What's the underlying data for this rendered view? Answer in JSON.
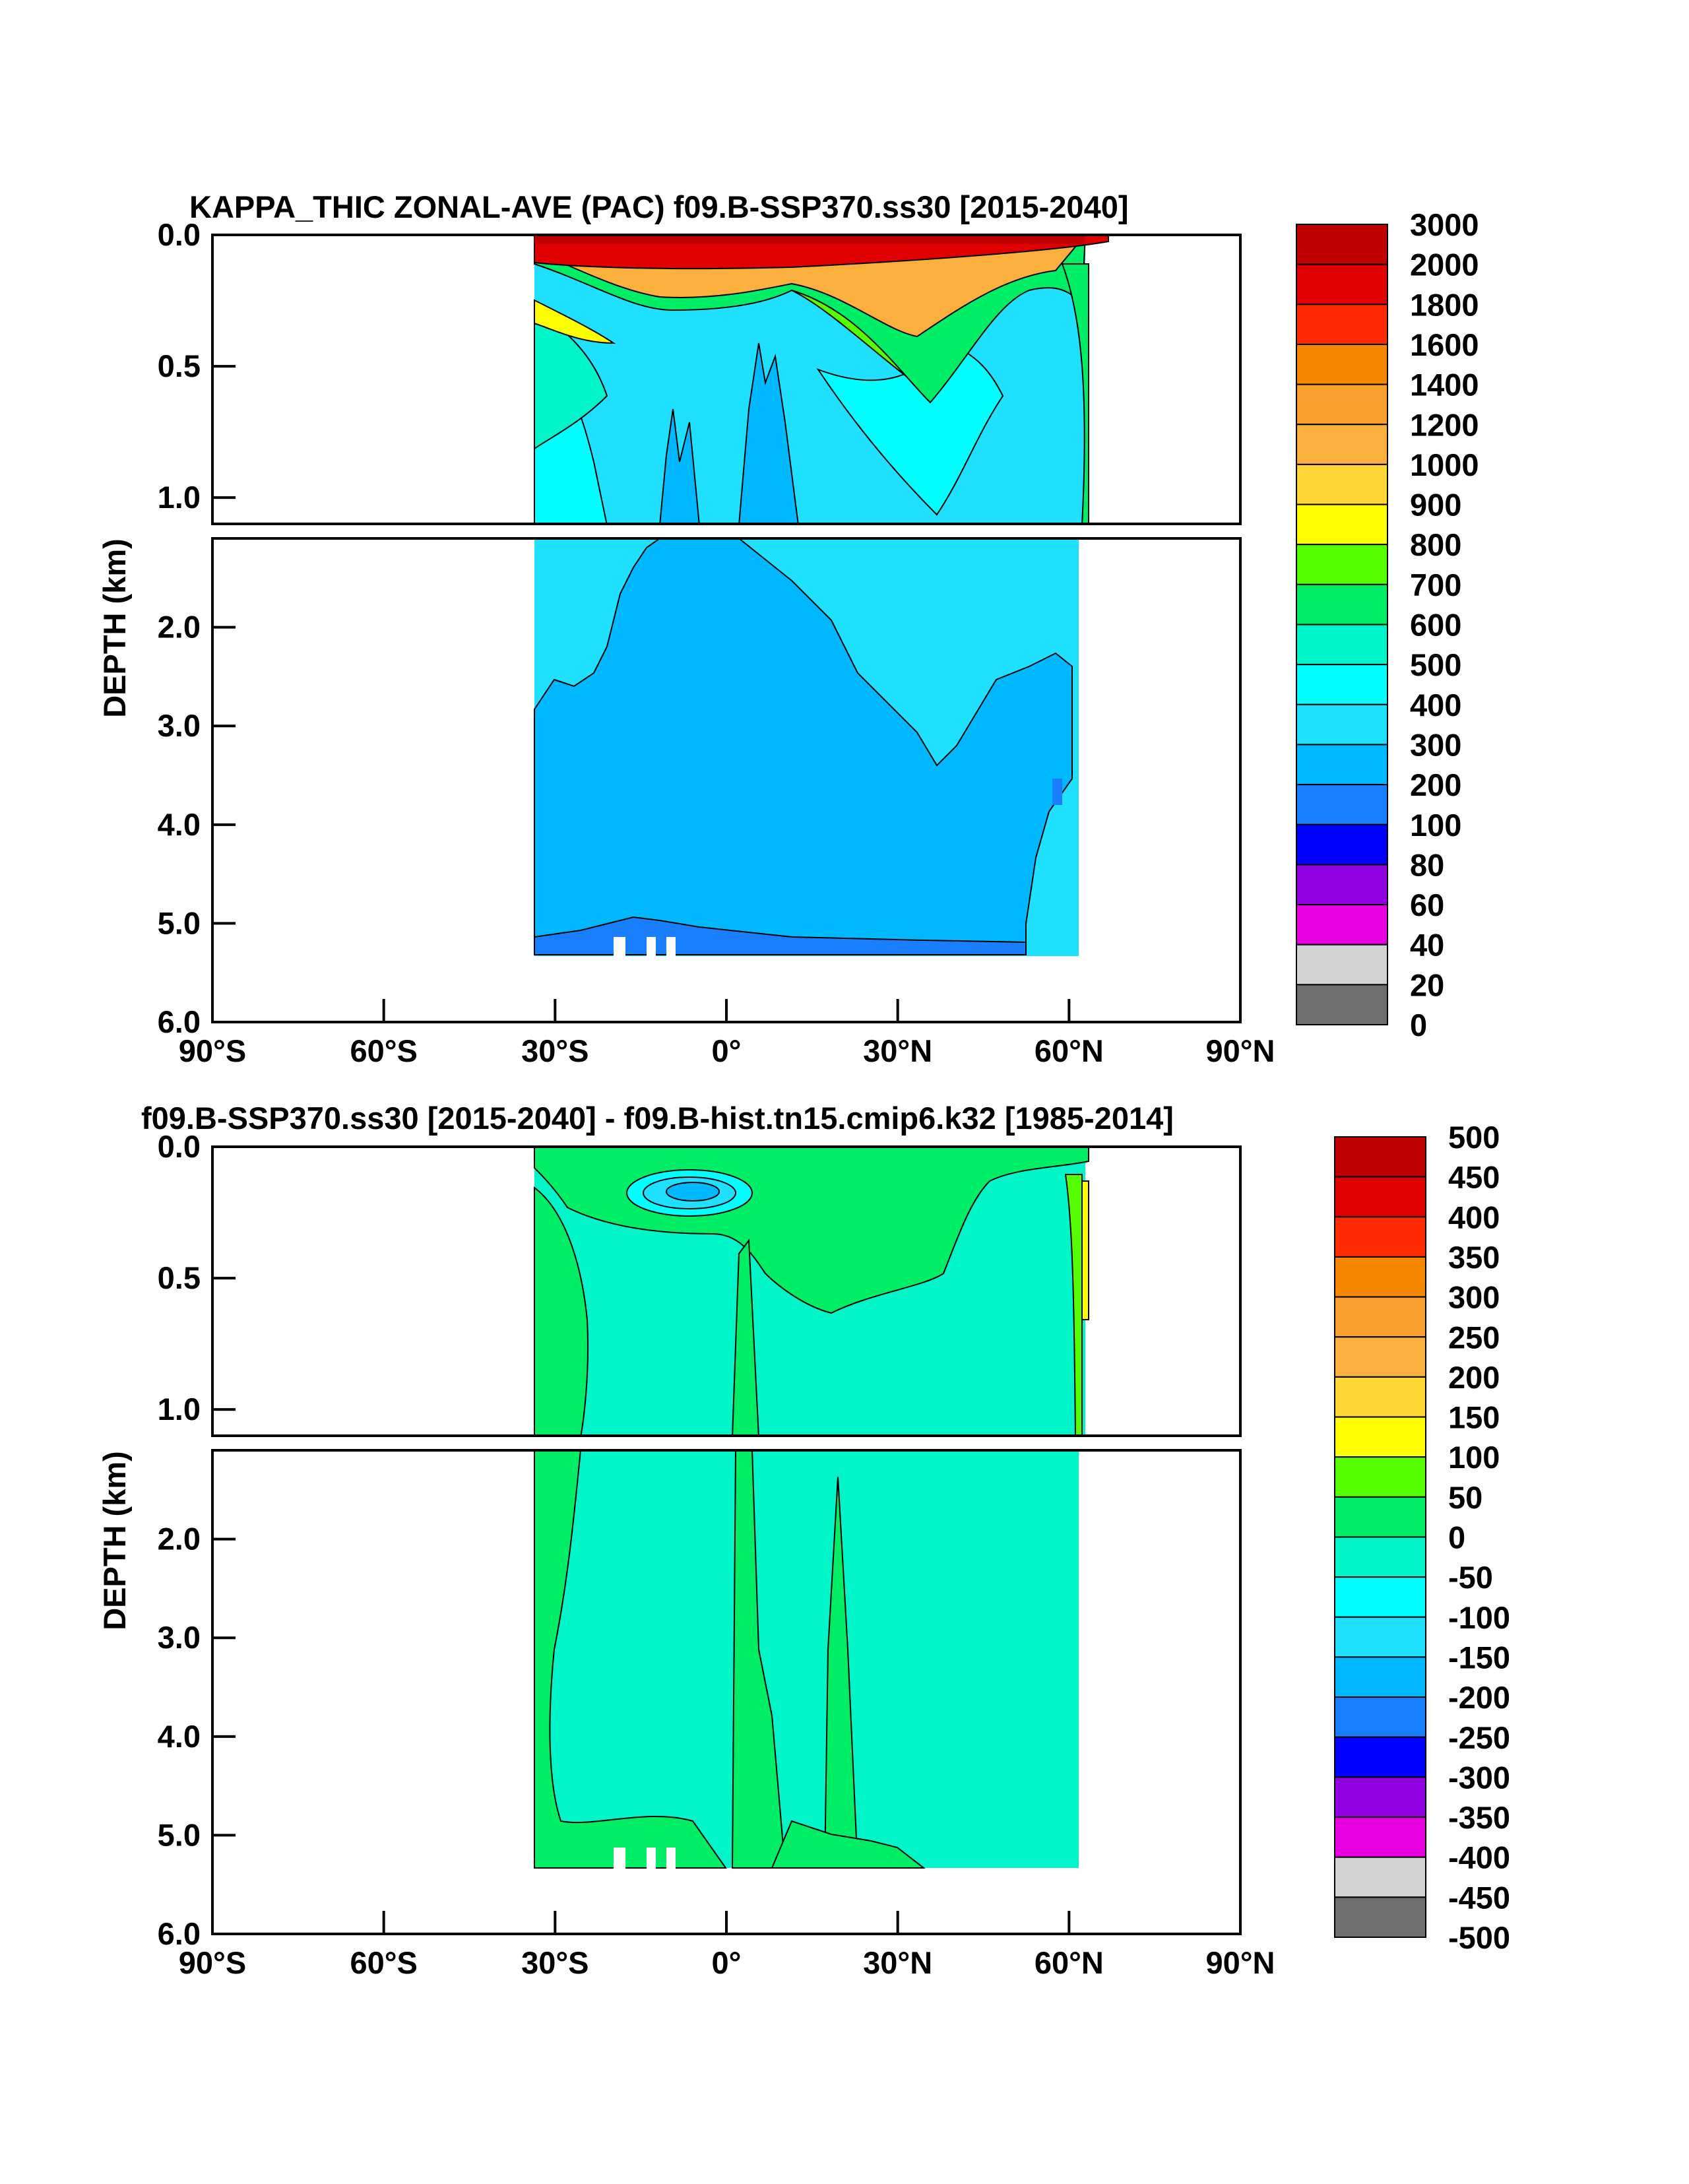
{
  "chart_data": [
    {
      "type": "heatmap",
      "title": "KAPPA_THIC ZONAL-AVE (PAC) f09.B-SSP370.ss30 [2015-2040]",
      "ylabel": "DEPTH (km)",
      "xlabel": "",
      "x_ticks": [
        "90°S",
        "60°S",
        "30°S",
        "0°",
        "30°N",
        "60°N",
        "90°N"
      ],
      "x_tick_values": [
        -90,
        -60,
        -30,
        0,
        30,
        60,
        90
      ],
      "xlim": [
        -90,
        90
      ],
      "y_ticks_upper": [
        "0.0",
        "0.5",
        "1.0"
      ],
      "y_ticks_lower": [
        "2.0",
        "3.0",
        "4.0",
        "5.0",
        "6.0"
      ],
      "ylim_upper": [
        0.0,
        1.1
      ],
      "ylim_lower": [
        1.1,
        6.0
      ],
      "colorbar": {
        "labels": [
          "3000",
          "2000",
          "1800",
          "1600",
          "1400",
          "1200",
          "1000",
          "900",
          "800",
          "700",
          "600",
          "500",
          "400",
          "300",
          "200",
          "100",
          "80",
          "60",
          "40",
          "20",
          "0"
        ],
        "colors": [
          "#c00000",
          "#e00000",
          "#ff2a00",
          "#f58800",
          "#fa9e2e",
          "#fbb03e",
          "#ffd633",
          "#ffff00",
          "#55ff00",
          "#00ee66",
          "#00f5c8",
          "#00ffff",
          "#1fe0ff",
          "#00b8ff",
          "#1a7fff",
          "#0000ff",
          "#9000e0",
          "#e800e0",
          "#d3d3d3",
          "#6e6e6e"
        ]
      },
      "regions": [
        {
          "label": "300",
          "color": "#1fe0ff",
          "description": "most of the upper 3 km"
        },
        {
          "label": "200",
          "color": "#00b8ff",
          "description": "deep ocean below ~3 km"
        },
        {
          "label": "3000",
          "color": "#c00000",
          "description": "surface layer"
        }
      ]
    },
    {
      "type": "heatmap",
      "title": "f09.B-SSP370.ss30 [2015-2040] - f09.B-hist.tn15.cmip6.k32 [1985-2014]",
      "ylabel": "DEPTH (km)",
      "xlabel": "",
      "x_ticks": [
        "90°S",
        "60°S",
        "30°S",
        "0°",
        "30°N",
        "60°N",
        "90°N"
      ],
      "x_tick_values": [
        -90,
        -60,
        -30,
        0,
        30,
        60,
        90
      ],
      "xlim": [
        -90,
        90
      ],
      "y_ticks_upper": [
        "0.0",
        "0.5",
        "1.0"
      ],
      "y_ticks_lower": [
        "2.0",
        "3.0",
        "4.0",
        "5.0",
        "6.0"
      ],
      "ylim_upper": [
        0.0,
        1.1
      ],
      "ylim_lower": [
        1.1,
        6.0
      ],
      "colorbar": {
        "labels": [
          "500",
          "450",
          "400",
          "350",
          "300",
          "250",
          "200",
          "150",
          "100",
          "50",
          "0",
          "-50",
          "-100",
          "-150",
          "-200",
          "-250",
          "-300",
          "-350",
          "-400",
          "-450",
          "-500"
        ],
        "colors": [
          "#c00000",
          "#e00000",
          "#ff2a00",
          "#f58800",
          "#fa9e2e",
          "#fbb03e",
          "#ffd633",
          "#ffff00",
          "#55ff00",
          "#00ee66",
          "#00f5c8",
          "#00ffff",
          "#1fe0ff",
          "#00b8ff",
          "#1a7fff",
          "#0000ff",
          "#9000e0",
          "#e800e0",
          "#d3d3d3",
          "#6e6e6e"
        ]
      },
      "regions": [
        {
          "label": "0",
          "color": "#00f5c8",
          "description": "most of the basin"
        },
        {
          "label": "50",
          "color": "#00ee66",
          "description": "southern flank and equatorial columns"
        },
        {
          "label": "-150",
          "color": "#1fe0ff",
          "description": "subsurface equatorial minimum"
        }
      ]
    }
  ]
}
